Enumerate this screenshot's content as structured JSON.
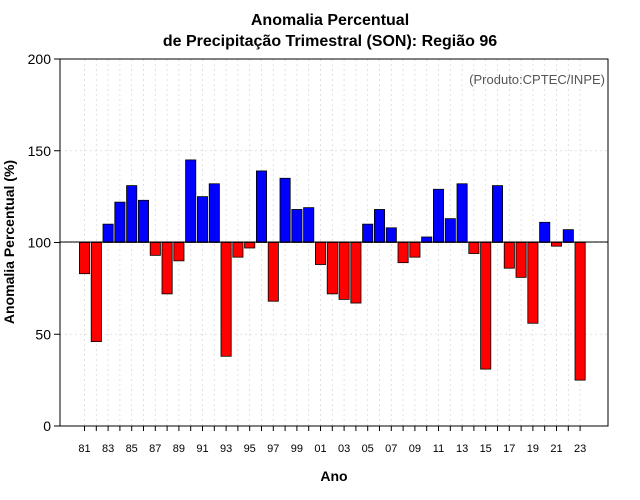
{
  "chart_data": {
    "type": "bar",
    "title": [
      "Anomalia Percentual",
      "de Precipitação Trimestral (SON): Região 96"
    ],
    "xlabel": "Ano",
    "ylabel": "Anomalia Percentual (%)",
    "annotation": "(Produto:CPTEC/INPE)",
    "baseline": 100,
    "ylim": [
      0,
      200
    ],
    "yticks": [
      0,
      50,
      100,
      150,
      200
    ],
    "categories": [
      "81",
      "82",
      "83",
      "84",
      "85",
      "86",
      "87",
      "88",
      "89",
      "90",
      "91",
      "92",
      "93",
      "94",
      "95",
      "96",
      "97",
      "98",
      "99",
      "00",
      "01",
      "02",
      "03",
      "04",
      "05",
      "06",
      "07",
      "08",
      "09",
      "10",
      "11",
      "12",
      "13",
      "14",
      "15",
      "16",
      "17",
      "18",
      "19",
      "20",
      "21",
      "22",
      "23"
    ],
    "xtick_labels_shown": [
      "81",
      "83",
      "85",
      "87",
      "89",
      "91",
      "93",
      "95",
      "97",
      "99",
      "01",
      "03",
      "05",
      "07",
      "09",
      "11",
      "13",
      "15",
      "17",
      "19",
      "21",
      "23"
    ],
    "values": [
      83,
      46,
      110,
      122,
      131,
      123,
      93,
      72,
      90,
      145,
      125,
      132,
      38,
      92,
      97,
      139,
      68,
      135,
      118,
      119,
      88,
      72,
      69,
      67,
      110,
      118,
      108,
      89,
      92,
      103,
      129,
      113,
      132,
      94,
      31,
      131,
      86,
      81,
      56,
      111,
      98,
      107,
      25
    ],
    "colors": {
      "above": "#0000ff",
      "below": "#ff0000",
      "outline": "#000000"
    },
    "grid": true
  }
}
